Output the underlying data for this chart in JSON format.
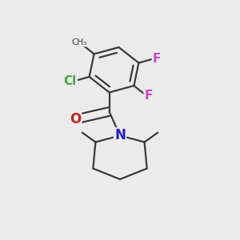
{
  "background_color": "#ebebeb",
  "bond_color": "#3a3a3a",
  "bond_width": 1.6,
  "atom_colors": {
    "N": "#2020cc",
    "O": "#cc2020",
    "Cl": "#44aa44",
    "F": "#cc44cc",
    "C": "#3a3a3a"
  }
}
